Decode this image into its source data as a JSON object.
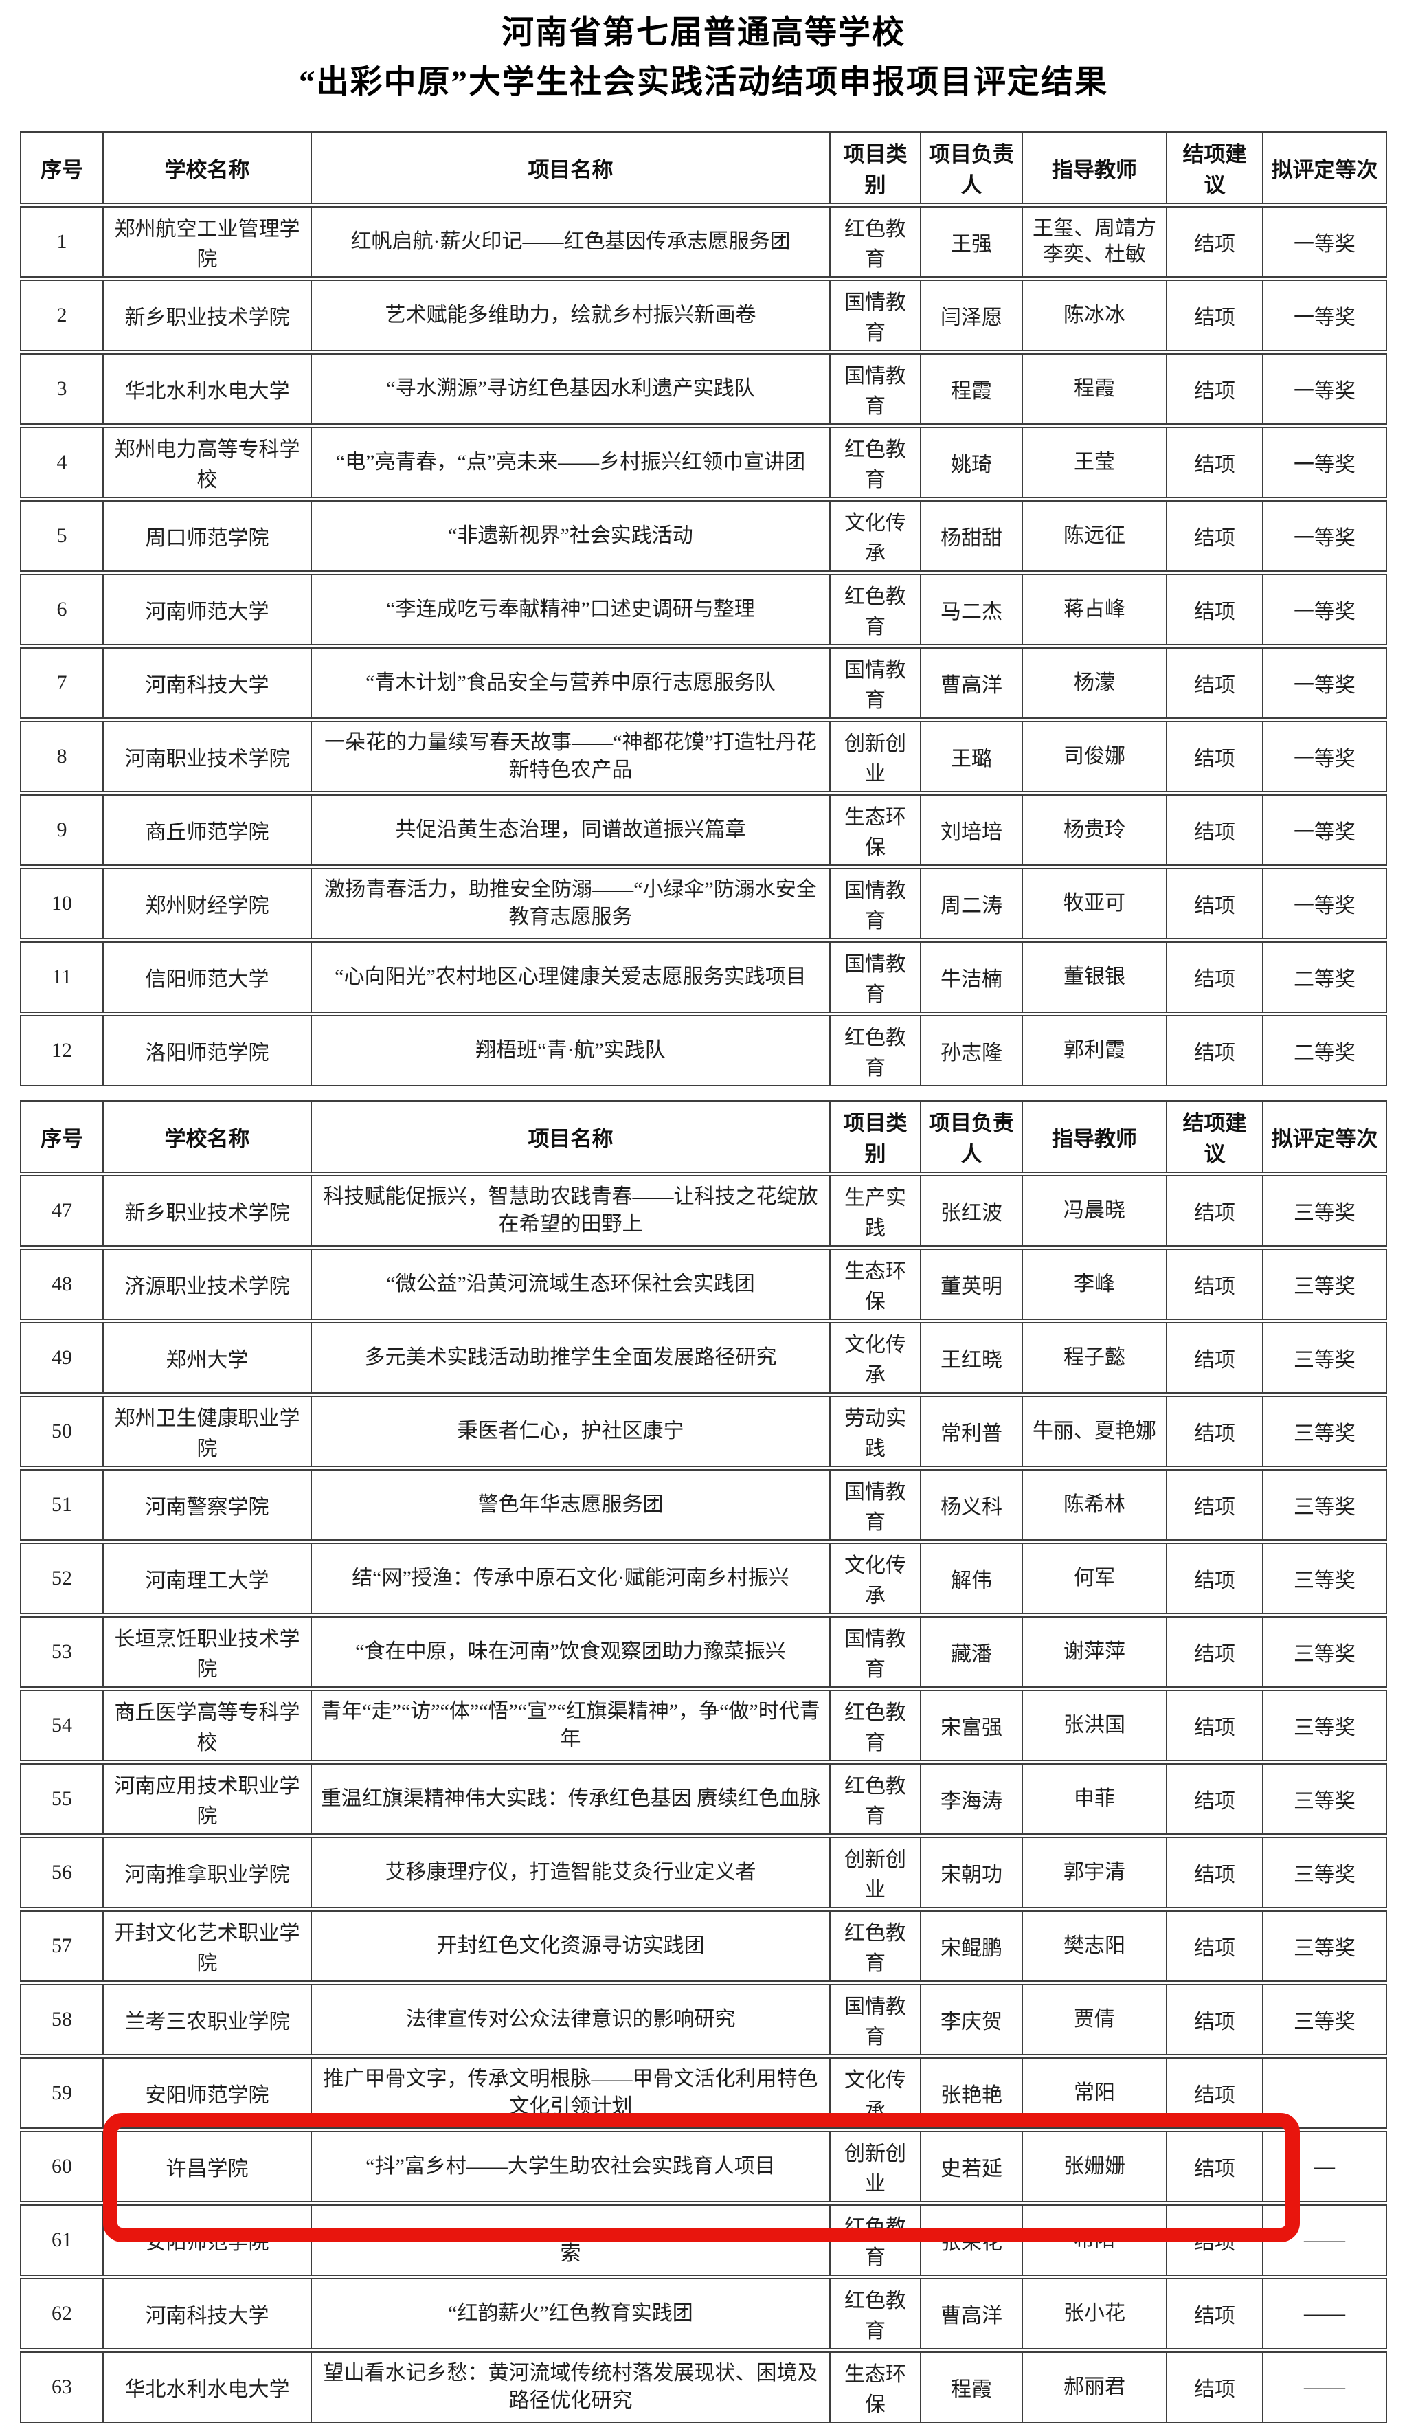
{
  "title": {
    "line1": "河南省第七届普通高等学校",
    "line2": "“出彩中原”大学生社会实践活动结项申报项目评定结果"
  },
  "columns": [
    "序号",
    "学校名称",
    "项目名称",
    "项目类别",
    "项目负责人",
    "指导教师",
    "结项建议",
    "拟评定等次"
  ],
  "highlight": {
    "color": "#e8150d",
    "highlighted_row_no": "60"
  },
  "table1": {
    "rows": [
      {
        "no": "1",
        "school": "郑州航空工业管理学院",
        "project": "红帆启航·薪火印记——红色基因传承志愿服务团",
        "category": "红色教育",
        "leader": "王强",
        "advisor": "王玺、周靖方\n李奕、杜敏",
        "suggestion": "结项",
        "grade": "一等奖"
      },
      {
        "no": "2",
        "school": "新乡职业技术学院",
        "project": "艺术赋能多维助力，绘就乡村振兴新画卷",
        "category": "国情教育",
        "leader": "闫泽愿",
        "advisor": "陈冰冰",
        "suggestion": "结项",
        "grade": "一等奖"
      },
      {
        "no": "3",
        "school": "华北水利水电大学",
        "project": "“寻水溯源”寻访红色基因水利遗产实践队",
        "category": "国情教育",
        "leader": "程霞",
        "advisor": "程霞",
        "suggestion": "结项",
        "grade": "一等奖"
      },
      {
        "no": "4",
        "school": "郑州电力高等专科学校",
        "project": "“电”亮青春，“点”亮未来——乡村振兴红领巾宣讲团",
        "category": "红色教育",
        "leader": "姚琦",
        "advisor": "王莹",
        "suggestion": "结项",
        "grade": "一等奖"
      },
      {
        "no": "5",
        "school": "周口师范学院",
        "project": "“非遗新视界”社会实践活动",
        "category": "文化传承",
        "leader": "杨甜甜",
        "advisor": "陈远征",
        "suggestion": "结项",
        "grade": "一等奖"
      },
      {
        "no": "6",
        "school": "河南师范大学",
        "project": "“李连成吃亏奉献精神”口述史调研与整理",
        "category": "红色教育",
        "leader": "马二杰",
        "advisor": "蒋占峰",
        "suggestion": "结项",
        "grade": "一等奖"
      },
      {
        "no": "7",
        "school": "河南科技大学",
        "project": "“青木计划”食品安全与营养中原行志愿服务队",
        "category": "国情教育",
        "leader": "曹高洋",
        "advisor": "杨濛",
        "suggestion": "结项",
        "grade": "一等奖"
      },
      {
        "no": "8",
        "school": "河南职业技术学院",
        "project": "一朵花的力量续写春天故事——“神都花馍”打造牡丹花新特色农产品",
        "category": "创新创业",
        "leader": "王璐",
        "advisor": "司俊娜",
        "suggestion": "结项",
        "grade": "一等奖"
      },
      {
        "no": "9",
        "school": "商丘师范学院",
        "project": "共促沿黄生态治理，同谱故道振兴篇章",
        "category": "生态环保",
        "leader": "刘培培",
        "advisor": "杨贵玲",
        "suggestion": "结项",
        "grade": "一等奖"
      },
      {
        "no": "10",
        "school": "郑州财经学院",
        "project": "激扬青春活力，助推安全防溺——“小绿伞”防溺水安全教育志愿服务",
        "category": "国情教育",
        "leader": "周二涛",
        "advisor": "牧亚可",
        "suggestion": "结项",
        "grade": "一等奖"
      },
      {
        "no": "11",
        "school": "信阳师范大学",
        "project": "“心向阳光”农村地区心理健康关爱志愿服务实践项目",
        "category": "国情教育",
        "leader": "牛洁楠",
        "advisor": "董银银",
        "suggestion": "结项",
        "grade": "二等奖"
      },
      {
        "no": "12",
        "school": "洛阳师范学院",
        "project": "翔梧班“青·航”实践队",
        "category": "红色教育",
        "leader": "孙志隆",
        "advisor": "郭利霞",
        "suggestion": "结项",
        "grade": "二等奖"
      }
    ]
  },
  "table2": {
    "rows": [
      {
        "no": "47",
        "school": "新乡职业技术学院",
        "project": "科技赋能促振兴，智慧助农践青春——让科技之花绽放在希望的田野上",
        "category": "生产实践",
        "leader": "张红波",
        "advisor": "冯晨晓",
        "suggestion": "结项",
        "grade": "三等奖"
      },
      {
        "no": "48",
        "school": "济源职业技术学院",
        "project": "“微公益”沿黄河流域生态环保社会实践团",
        "category": "生态环保",
        "leader": "董英明",
        "advisor": "李峰",
        "suggestion": "结项",
        "grade": "三等奖"
      },
      {
        "no": "49",
        "school": "郑州大学",
        "project": "多元美术实践活动助推学生全面发展路径研究",
        "category": "文化传承",
        "leader": "王红晓",
        "advisor": "程子懿",
        "suggestion": "结项",
        "grade": "三等奖"
      },
      {
        "no": "50",
        "school": "郑州卫生健康职业学院",
        "project": "秉医者仁心，护社区康宁",
        "category": "劳动实践",
        "leader": "常利普",
        "advisor": "牛丽、夏艳娜",
        "suggestion": "结项",
        "grade": "三等奖"
      },
      {
        "no": "51",
        "school": "河南警察学院",
        "project": "警色年华志愿服务团",
        "category": "国情教育",
        "leader": "杨义科",
        "advisor": "陈希林",
        "suggestion": "结项",
        "grade": "三等奖"
      },
      {
        "no": "52",
        "school": "河南理工大学",
        "project": "结“网”授渔：传承中原石文化·赋能河南乡村振兴",
        "category": "文化传承",
        "leader": "解伟",
        "advisor": "何军",
        "suggestion": "结项",
        "grade": "三等奖"
      },
      {
        "no": "53",
        "school": "长垣烹饪职业技术学院",
        "project": "“食在中原，味在河南”饮食观察团助力豫菜振兴",
        "category": "国情教育",
        "leader": "藏潘",
        "advisor": "谢萍萍",
        "suggestion": "结项",
        "grade": "三等奖"
      },
      {
        "no": "54",
        "school": "商丘医学高等专科学校",
        "project": "青年“走”“访”“体”“悟”“宣”“红旗渠精神”，争“做”时代青年",
        "category": "红色教育",
        "leader": "宋富强",
        "advisor": "张洪国",
        "suggestion": "结项",
        "grade": "三等奖"
      },
      {
        "no": "55",
        "school": "河南应用技术职业学院",
        "project": "重温红旗渠精神伟大实践：传承红色基因 赓续红色血脉",
        "category": "红色教育",
        "leader": "李海涛",
        "advisor": "申菲",
        "suggestion": "结项",
        "grade": "三等奖"
      },
      {
        "no": "56",
        "school": "河南推拿职业学院",
        "project": "艾移康理疗仪，打造智能艾灸行业定义者",
        "category": "创新创业",
        "leader": "宋朝功",
        "advisor": "郭宇清",
        "suggestion": "结项",
        "grade": "三等奖"
      },
      {
        "no": "57",
        "school": "开封文化艺术职业学院",
        "project": "开封红色文化资源寻访实践团",
        "category": "红色教育",
        "leader": "宋鲲鹏",
        "advisor": "樊志阳",
        "suggestion": "结项",
        "grade": "三等奖"
      },
      {
        "no": "58",
        "school": "兰考三农职业学院",
        "project": "法律宣传对公众法律意识的影响研究",
        "category": "国情教育",
        "leader": "李庆贺",
        "advisor": "贾倩",
        "suggestion": "结项",
        "grade": "三等奖"
      },
      {
        "no": "59",
        "school": "安阳师范学院",
        "project": "推广甲骨文字，传承文明根脉——甲骨文活化利用特色文化引领计划",
        "category": "文化传承",
        "leader": "张艳艳",
        "advisor": "常阳",
        "suggestion": "结项",
        "grade": ""
      },
      {
        "no": "60",
        "school": "许昌学院",
        "project": "“抖”富乡村——大学生助农社会实践育人项目",
        "category": "创新创业",
        "leader": "史若延",
        "advisor": "张姗姗",
        "suggestion": "结项",
        "grade": "—",
        "highlighted": true
      },
      {
        "no": "61",
        "school": "安阳师范学院",
        "project": "\n索",
        "category": "红色教育",
        "leader": "张荣花",
        "advisor": "希阳",
        "suggestion": "结项",
        "grade": "——"
      },
      {
        "no": "62",
        "school": "河南科技大学",
        "project": "“红韵薪火”红色教育实践团",
        "category": "红色教育",
        "leader": "曹高洋",
        "advisor": "张小花",
        "suggestion": "结项",
        "grade": "——"
      },
      {
        "no": "63",
        "school": "华北水利水电大学",
        "project": "望山看水记乡愁：黄河流域传统村落发展现状、困境及路径优化研究",
        "category": "生态环保",
        "leader": "程霞",
        "advisor": "郝丽君",
        "suggestion": "结项",
        "grade": "——"
      }
    ]
  }
}
